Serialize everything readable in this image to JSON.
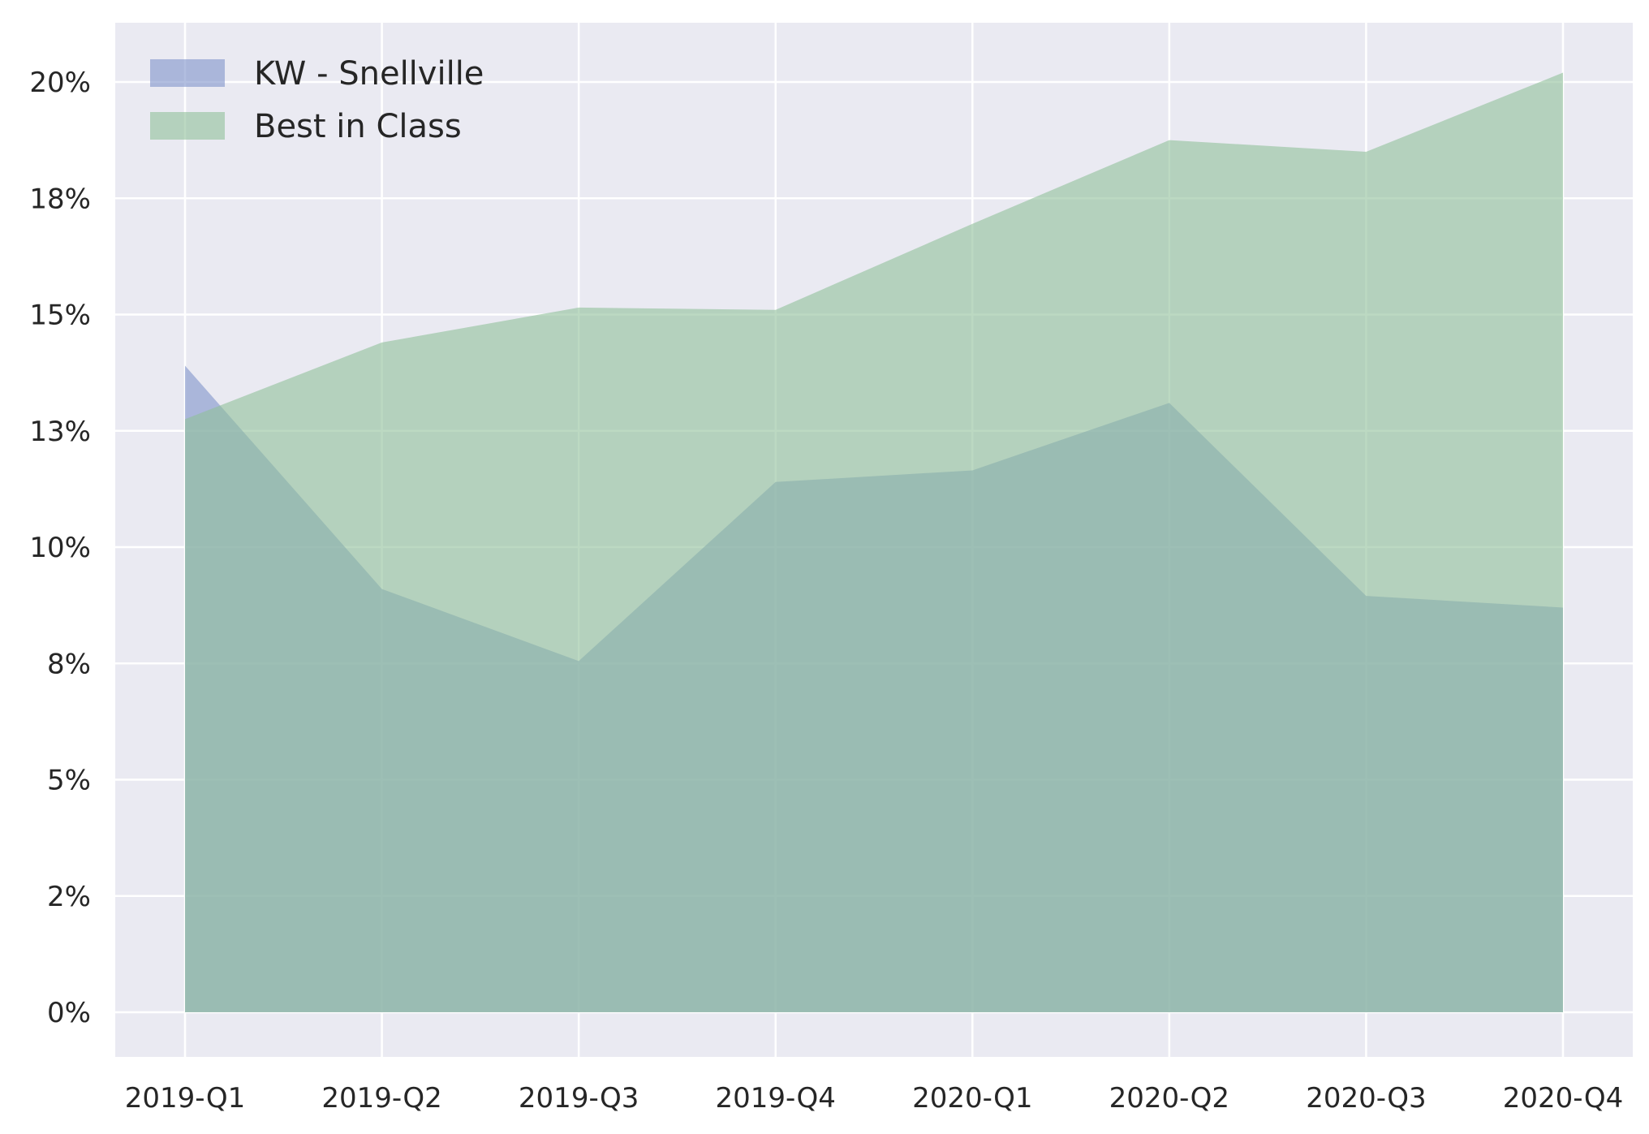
{
  "chart_data": {
    "type": "area",
    "categories": [
      "2019-Q1",
      "2019-Q2",
      "2019-Q3",
      "2019-Q4",
      "2020-Q1",
      "2020-Q2",
      "2020-Q3",
      "2020-Q4"
    ],
    "series": [
      {
        "name": "KW - Snellville",
        "values": [
          13.9,
          9.1,
          7.55,
          11.4,
          11.65,
          13.1,
          8.95,
          8.7
        ],
        "color": "#7f93c9"
      },
      {
        "name": "Best in Class",
        "values": [
          12.75,
          14.4,
          15.15,
          15.1,
          16.95,
          18.75,
          18.5,
          20.2
        ],
        "color": "#8fc09a"
      }
    ],
    "yticks": [
      0,
      2.5,
      5,
      7.5,
      10,
      12.5,
      15,
      17.5,
      20
    ],
    "ytick_labels": [
      "0%",
      "2%",
      "5%",
      "8%",
      "10%",
      "13%",
      "15%",
      "18%",
      "20%"
    ],
    "ylim": [
      -1,
      21.3
    ],
    "grid": true,
    "legend_position": "top-left",
    "background_color": "#eaeaf2",
    "overlap_color": "#7fa7a8"
  }
}
